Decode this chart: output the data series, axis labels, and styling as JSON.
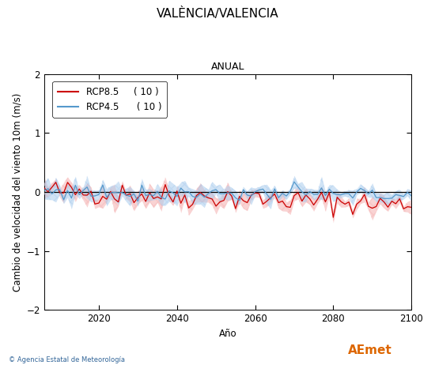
{
  "title": "VALÈNCIA/VALENCIA",
  "subtitle": "ANUAL",
  "xlabel": "Año",
  "ylabel": "Cambio de velocidad del viento 10m (m/s)",
  "xlim": [
    2006,
    2100
  ],
  "ylim": [
    -2.0,
    2.0
  ],
  "yticks": [
    -2,
    -1,
    0,
    1,
    2
  ],
  "xticks": [
    2020,
    2040,
    2060,
    2080,
    2100
  ],
  "rcp85_color": "#cc0000",
  "rcp45_color": "#5599cc",
  "rcp85_fill_color": "#f5b0b0",
  "rcp45_fill_color": "#aaccee",
  "rcp85_label": "RCP8.5",
  "rcp45_label": "RCP4.5",
  "rcp85_count": "( 10 )",
  "rcp45_count": "( 10 )",
  "start_year": 2006,
  "end_year": 2100,
  "footer_text": "© Agencia Estatal de Meteorología",
  "title_fontsize": 11,
  "subtitle_fontsize": 9,
  "label_fontsize": 8.5,
  "tick_fontsize": 8.5,
  "legend_fontsize": 8.5
}
